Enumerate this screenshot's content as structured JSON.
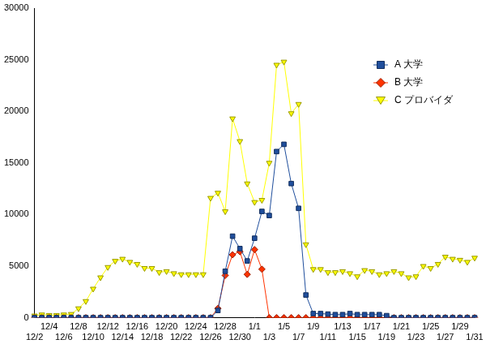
{
  "chart_data": {
    "type": "line",
    "categories": [
      "12/2",
      null,
      "12/4",
      null,
      "12/6",
      null,
      "12/8",
      null,
      "12/10",
      null,
      "12/12",
      null,
      "12/14",
      null,
      "12/16",
      null,
      "12/18",
      null,
      "12/20",
      null,
      "12/22",
      null,
      "12/24",
      null,
      "12/26",
      null,
      "12/28",
      null,
      "12/30",
      null,
      "1/1",
      null,
      "1/3",
      null,
      "1/5",
      null,
      "1/7",
      null,
      "1/9",
      null,
      "1/11",
      null,
      "1/13",
      null,
      "1/15",
      null,
      "1/17",
      null,
      "1/19",
      null,
      "1/21",
      null,
      "1/23",
      null,
      "1/25",
      null,
      "1/27",
      null,
      "1/29",
      null,
      "1/31"
    ],
    "series": [
      {
        "name": "A 大学",
        "color": "#1f4e9c",
        "marker": "square",
        "values": [
          0,
          0,
          0,
          0,
          0,
          0,
          0,
          0,
          0,
          0,
          0,
          0,
          0,
          0,
          0,
          0,
          0,
          0,
          0,
          0,
          0,
          0,
          0,
          0,
          0,
          700,
          4500,
          7900,
          6700,
          5500,
          7700,
          10300,
          9900,
          16100,
          16800,
          13000,
          10600,
          2200,
          400,
          400,
          350,
          300,
          300,
          400,
          300,
          300,
          300,
          300,
          200,
          0,
          0,
          0,
          0,
          0,
          0,
          0,
          0,
          0,
          0,
          0,
          0
        ]
      },
      {
        "name": "B 大学",
        "color": "#ff3300",
        "marker": "diamond",
        "values": [
          0,
          0,
          0,
          0,
          0,
          0,
          0,
          0,
          0,
          0,
          0,
          0,
          0,
          0,
          0,
          0,
          0,
          0,
          0,
          0,
          0,
          0,
          0,
          0,
          0,
          900,
          4100,
          6100,
          6400,
          4200,
          6600,
          4700,
          0,
          0,
          0,
          0,
          0,
          0,
          0,
          0,
          0,
          0,
          0,
          0,
          0,
          0,
          0,
          0,
          0,
          0,
          0,
          0,
          0,
          0,
          0,
          0,
          0,
          0,
          0,
          0,
          0
        ]
      },
      {
        "name": "C プロバイダ",
        "color": "#ffff00",
        "marker": "triangle_down",
        "values": [
          200,
          300,
          250,
          250,
          300,
          350,
          900,
          1600,
          2800,
          3900,
          4900,
          5500,
          5700,
          5400,
          5200,
          4800,
          4800,
          4400,
          4500,
          4300,
          4200,
          4200,
          4200,
          4200,
          11600,
          12100,
          10300,
          19300,
          17100,
          13000,
          11200,
          11400,
          15000,
          24500,
          24800,
          19800,
          20700,
          7100,
          4700,
          4700,
          4400,
          4400,
          4500,
          4300,
          4000,
          4600,
          4500,
          4200,
          4300,
          4500,
          4300,
          3900,
          4000,
          5000,
          4800,
          5200,
          5900,
          5700,
          5600,
          5400,
          5800
        ]
      }
    ],
    "ylim": [
      0,
      30000
    ],
    "yticks": [
      0,
      5000,
      10000,
      15000,
      20000,
      25000,
      30000
    ],
    "grid": false,
    "legend": "upper right"
  }
}
